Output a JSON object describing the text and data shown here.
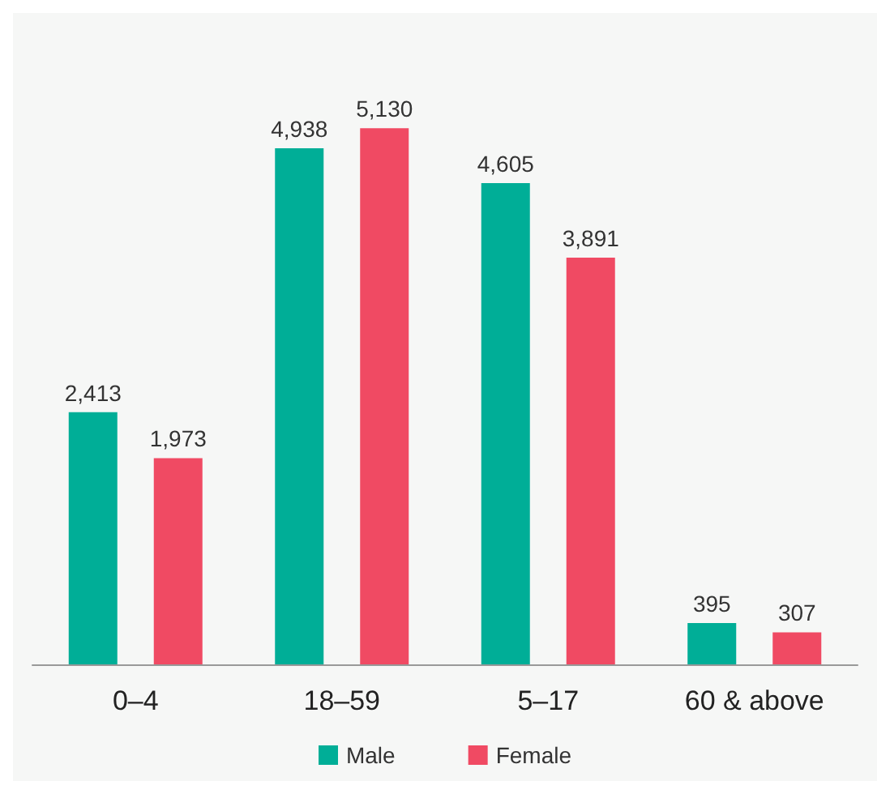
{
  "chart_data": {
    "type": "bar",
    "categories": [
      "0–4",
      "18–59",
      "5–17",
      "60 & above"
    ],
    "series": [
      {
        "name": "Male",
        "color": "#00ae97",
        "values": [
          2413,
          4938,
          4605,
          395
        ],
        "value_labels": [
          "2,413",
          "4,938",
          "4,605",
          "395"
        ]
      },
      {
        "name": "Female",
        "color": "#f04a63",
        "values": [
          1973,
          5130,
          3891,
          307
        ],
        "value_labels": [
          "1,973",
          "5,130",
          "3,891",
          "307"
        ]
      }
    ],
    "legend": "bottom",
    "grid": false
  }
}
